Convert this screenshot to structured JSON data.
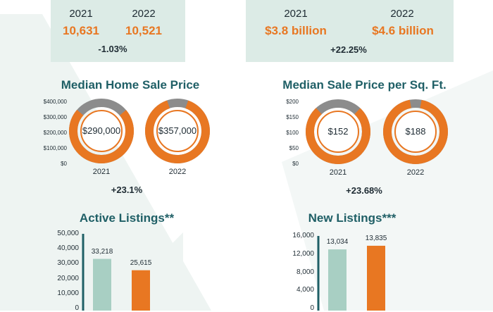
{
  "top_left": {
    "year1": "2021",
    "year2": "2022",
    "value1": "10,631",
    "value2": "10,521",
    "change": "-1.03%"
  },
  "top_right": {
    "year1": "2021",
    "year2": "2022",
    "value1": "$3.8 billion",
    "value2": "$4.6 billion",
    "change": "+22.25%"
  },
  "colors": {
    "orange": "#e87722",
    "teal": "#a8cfc3",
    "grey": "#8c8c8c",
    "title": "#1f5f66",
    "panel": "#dcebe6"
  },
  "chart_data": [
    {
      "type": "pie",
      "title": "Median Home Sale Price",
      "yticks": [
        "$400,000",
        "$300,000",
        "$200,000",
        "$100,000",
        "$0"
      ],
      "ylim": [
        0,
        400000
      ],
      "items": [
        {
          "year": "2021",
          "value": 290000,
          "label": "$290,000"
        },
        {
          "year": "2022",
          "value": 357000,
          "label": "$357,000"
        }
      ],
      "change": "+23.1%"
    },
    {
      "type": "pie",
      "title": "Median Sale Price per Sq. Ft.",
      "yticks": [
        "$200",
        "$150",
        "$100",
        "$50",
        "$0"
      ],
      "ylim": [
        0,
        200
      ],
      "items": [
        {
          "year": "2021",
          "value": 152,
          "label": "$152"
        },
        {
          "year": "2022",
          "value": 188,
          "label": "$188"
        }
      ],
      "change": "+23.68%"
    },
    {
      "type": "bar",
      "title": "Active Listings**",
      "yticks": [
        "50,000",
        "40,000",
        "30,000",
        "20,000",
        "10,000",
        "0"
      ],
      "ylim": [
        0,
        50000
      ],
      "values": [
        33218,
        25615
      ],
      "labels": [
        "33,218",
        "25,615"
      ]
    },
    {
      "type": "bar",
      "title": "New Listings***",
      "yticks": [
        "16,000",
        "12,000",
        "8,000",
        "4,000",
        "0"
      ],
      "ylim": [
        0,
        16000
      ],
      "values": [
        13034,
        13835
      ],
      "labels": [
        "13,034",
        "13,835"
      ]
    }
  ]
}
